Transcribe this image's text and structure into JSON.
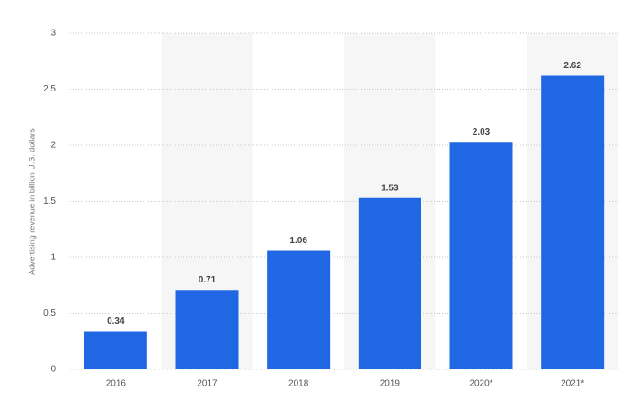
{
  "chart_data": {
    "type": "bar",
    "y_axis_label": "Advertising revenue in billion U.S. dollars",
    "categories": [
      "2016",
      "2017",
      "2018",
      "2019",
      "2020*",
      "2021*"
    ],
    "values": [
      0.34,
      0.71,
      1.06,
      1.53,
      2.03,
      2.62
    ],
    "color": "#2068e3",
    "ylim": [
      0,
      3
    ],
    "yticks": [
      0,
      0.5,
      1,
      1.5,
      2,
      2.5,
      3
    ],
    "grid": true
  }
}
